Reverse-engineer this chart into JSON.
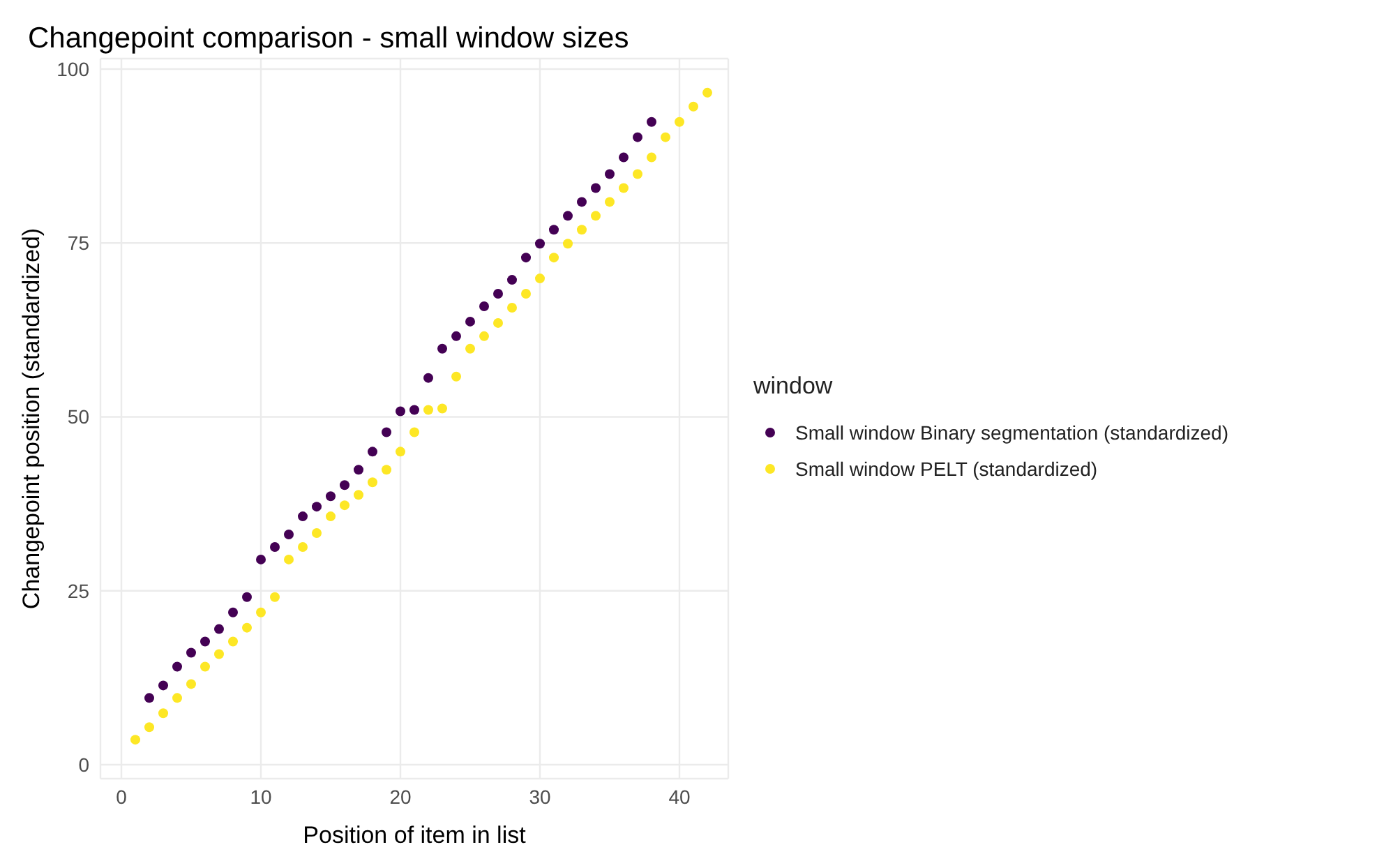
{
  "chart_data": {
    "type": "scatter",
    "title": "Changepoint comparison - small window sizes",
    "xlabel": "Position of item in list",
    "ylabel": "Changepoint position (standardized)",
    "legend_title": "window",
    "legend": "right",
    "grid": true,
    "marker": "circle",
    "xlim": [
      -1.5,
      43.5
    ],
    "xticks": [
      0,
      10,
      20,
      30,
      40
    ],
    "ylim": [
      -2,
      101.5
    ],
    "yticks": [
      0,
      25,
      50,
      75,
      100
    ],
    "series": [
      {
        "name": "Small window Binary segmentation (standardized)",
        "color": "#440154",
        "x": [
          2,
          3,
          4,
          5,
          6,
          7,
          8,
          9,
          10,
          11,
          12,
          13,
          14,
          15,
          16,
          17,
          18,
          19,
          20,
          21,
          22,
          23,
          24,
          25,
          26,
          27,
          28,
          29,
          30,
          31,
          32,
          33,
          34,
          35,
          36,
          37,
          38
        ],
        "values": [
          9.6,
          11.4,
          14.1,
          16.1,
          17.7,
          19.5,
          21.9,
          24.1,
          29.5,
          31.3,
          33.1,
          35.7,
          37.1,
          38.6,
          40.2,
          42.4,
          45,
          47.8,
          50.8,
          51,
          55.6,
          59.8,
          61.6,
          63.7,
          65.9,
          67.7,
          69.7,
          72.9,
          74.9,
          76.9,
          78.9,
          80.9,
          82.9,
          84.9,
          87.3,
          90.2,
          92.4
        ]
      },
      {
        "name": "Small window PELT (standardized)",
        "color": "#fde725",
        "x": [
          1,
          2,
          3,
          4,
          5,
          6,
          7,
          8,
          9,
          10,
          11,
          12,
          13,
          14,
          15,
          16,
          17,
          18,
          19,
          20,
          21,
          22,
          23,
          24,
          25,
          26,
          27,
          28,
          29,
          30,
          31,
          32,
          33,
          34,
          35,
          36,
          37,
          38,
          39,
          40,
          41,
          42
        ],
        "values": [
          3.6,
          5.4,
          7.4,
          9.6,
          11.6,
          14.1,
          15.9,
          17.7,
          19.7,
          21.9,
          24.1,
          29.5,
          31.3,
          33.3,
          35.7,
          37.3,
          38.8,
          40.6,
          42.4,
          45,
          47.8,
          51,
          51.2,
          55.8,
          59.8,
          61.6,
          63.5,
          65.7,
          67.7,
          69.9,
          72.9,
          74.9,
          76.9,
          78.9,
          80.9,
          82.9,
          84.9,
          87.3,
          90.2,
          92.4,
          94.6,
          96.6
        ]
      }
    ]
  }
}
